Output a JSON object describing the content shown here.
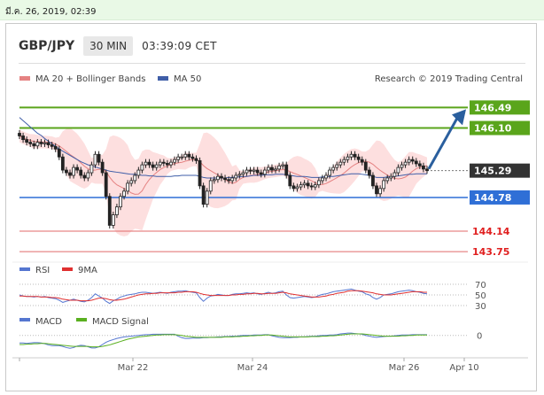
{
  "date_bar": {
    "text": "มี.ค. 26, 2019, 02:39"
  },
  "header": {
    "symbol": "GBP/JPY",
    "timeframe": "30 MIN",
    "time": "03:39:09 CET"
  },
  "colors": {
    "bollinger_fill": "#fdd9d9",
    "ma20": "#e58282",
    "ma50": "#3f5ea8",
    "resistance": "#5aa51b",
    "support_blue": "#2f6fd6",
    "support_red": "#e06a6a",
    "current_price_bg": "#333333",
    "arrow": "#2a5f9e",
    "rsi": "#5576d0",
    "rsi_ma": "#e03030",
    "macd": "#5576d0",
    "macd_signal": "#5ab020",
    "candle_up": "#ffffff",
    "candle_down": "#222222"
  },
  "chart_data": [
    {
      "type": "candlestick",
      "title": "",
      "legend": [
        {
          "name": "MA 20 + Bollinger Bands",
          "color": "#e58282"
        },
        {
          "name": "MA 50",
          "color": "#3f5ea8"
        }
      ],
      "credit": "Research © 2019 Trading Central",
      "ylim": [
        143.55,
        146.85
      ],
      "levels": [
        {
          "value": 146.49,
          "label": "146.49",
          "kind": "resistance"
        },
        {
          "value": 146.1,
          "label": "146.10",
          "kind": "resistance"
        },
        {
          "value": 145.29,
          "label": "145.29",
          "kind": "current"
        },
        {
          "value": 144.78,
          "label": "144.78",
          "kind": "support"
        },
        {
          "value": 144.14,
          "label": "144.14",
          "kind": "support_red"
        },
        {
          "value": 143.75,
          "label": "143.75",
          "kind": "support_red"
        }
      ],
      "x_ticks": [
        "Mar 22",
        "Mar 24",
        "Mar 26",
        "Apr 10"
      ],
      "closes": [
        145.95,
        145.88,
        145.83,
        145.8,
        145.76,
        145.83,
        145.8,
        145.82,
        145.78,
        145.75,
        145.7,
        145.55,
        145.3,
        145.25,
        145.2,
        145.35,
        145.3,
        145.2,
        145.15,
        145.25,
        145.4,
        145.6,
        145.45,
        145.25,
        144.8,
        144.25,
        144.45,
        144.6,
        144.8,
        144.9,
        145.05,
        145.1,
        145.2,
        145.3,
        145.4,
        145.45,
        145.4,
        145.35,
        145.4,
        145.45,
        145.43,
        145.4,
        145.45,
        145.5,
        145.55,
        145.55,
        145.6,
        145.55,
        145.52,
        145.48,
        145.0,
        144.65,
        144.9,
        145.1,
        145.12,
        145.18,
        145.15,
        145.12,
        145.1,
        145.15,
        145.2,
        145.22,
        145.25,
        145.3,
        145.28,
        145.3,
        145.25,
        145.22,
        145.3,
        145.35,
        145.3,
        145.32,
        145.38,
        145.4,
        145.2,
        145.0,
        144.95,
        144.98,
        145.02,
        145.05,
        145.0,
        144.98,
        145.02,
        145.1,
        145.15,
        145.2,
        145.3,
        145.35,
        145.4,
        145.45,
        145.5,
        145.55,
        145.6,
        145.55,
        145.5,
        145.45,
        145.3,
        145.2,
        145.0,
        144.85,
        144.95,
        145.1,
        145.15,
        145.18,
        145.25,
        145.35,
        145.4,
        145.45,
        145.5,
        145.47,
        145.42,
        145.38,
        145.32,
        145.29
      ],
      "ma50": [
        146.3,
        146.24,
        146.18,
        146.12,
        146.06,
        146.0,
        145.96,
        145.9,
        145.85,
        145.8,
        145.75,
        145.7,
        145.66,
        145.62,
        145.58,
        145.54,
        145.5,
        145.46,
        145.43,
        145.4,
        145.38,
        145.36,
        145.34,
        145.32,
        145.3,
        145.28,
        145.27,
        145.26,
        145.25,
        145.24,
        145.23,
        145.22,
        145.22,
        145.21,
        145.2,
        145.2,
        145.19,
        145.19,
        145.18,
        145.18,
        145.18,
        145.18,
        145.18,
        145.19,
        145.19,
        145.2,
        145.2,
        145.2,
        145.2,
        145.2,
        145.18,
        145.16,
        145.15,
        145.15,
        145.15,
        145.15,
        145.15,
        145.15,
        145.16,
        145.16,
        145.17,
        145.17,
        145.18,
        145.18,
        145.19,
        145.2,
        145.2,
        145.2,
        145.21,
        145.21,
        145.21,
        145.22,
        145.22,
        145.22,
        145.21,
        145.2,
        145.19,
        145.18,
        145.18,
        145.18,
        145.17,
        145.16,
        145.16,
        145.16,
        145.17,
        145.17,
        145.18,
        145.18,
        145.19,
        145.2,
        145.21,
        145.22,
        145.23,
        145.23,
        145.23,
        145.22,
        145.21,
        145.2,
        145.18,
        145.16,
        145.16,
        145.16,
        145.17,
        145.17,
        145.18,
        145.19,
        145.2,
        145.21,
        145.22,
        145.22,
        145.23,
        145.23,
        145.23,
        145.23
      ]
    },
    {
      "type": "line",
      "title": "",
      "legend": [
        {
          "name": "RSI",
          "color": "#5576d0"
        },
        {
          "name": "9MA",
          "color": "#e03030"
        }
      ],
      "ylim": [
        25,
        75
      ],
      "y_ticks": [
        "70",
        "50",
        "30"
      ],
      "rsi": [
        50,
        48,
        47,
        47,
        46,
        47,
        46,
        47,
        45,
        44,
        43,
        40,
        36,
        38,
        40,
        42,
        40,
        38,
        37,
        40,
        45,
        52,
        48,
        44,
        38,
        34,
        39,
        42,
        46,
        48,
        50,
        51,
        52,
        54,
        55,
        55,
        54,
        53,
        54,
        55,
        54,
        53,
        55,
        56,
        57,
        57,
        58,
        56,
        55,
        54,
        45,
        38,
        44,
        48,
        49,
        51,
        50,
        49,
        49,
        51,
        52,
        52,
        53,
        54,
        53,
        54,
        52,
        51,
        53,
        55,
        53,
        54,
        56,
        57,
        50,
        45,
        44,
        45,
        46,
        47,
        46,
        45,
        46,
        49,
        51,
        52,
        54,
        56,
        57,
        58,
        59,
        60,
        61,
        59,
        57,
        56,
        52,
        50,
        45,
        42,
        45,
        50,
        51,
        52,
        54,
        56,
        57,
        58,
        59,
        58,
        56,
        55,
        53,
        52
      ],
      "rsi_ma": [
        48,
        48,
        47,
        47,
        47,
        47,
        46,
        46,
        46,
        45,
        45,
        44,
        42,
        41,
        40,
        40,
        40,
        39,
        39,
        39,
        40,
        42,
        44,
        44,
        43,
        41,
        40,
        40,
        41,
        42,
        44,
        46,
        48,
        50,
        51,
        52,
        52,
        53,
        53,
        54,
        54,
        54,
        54,
        54,
        55,
        55,
        56,
        56,
        56,
        55,
        53,
        51,
        50,
        49,
        49,
        49,
        49,
        49,
        49,
        50,
        50,
        51,
        51,
        52,
        52,
        53,
        53,
        52,
        52,
        53,
        53,
        53,
        54,
        55,
        54,
        52,
        51,
        50,
        49,
        48,
        47,
        46,
        46,
        46,
        47,
        48,
        50,
        51,
        53,
        54,
        55,
        57,
        58,
        58,
        58,
        57,
        56,
        55,
        54,
        52,
        51,
        50,
        50,
        50,
        51,
        52,
        53,
        54,
        55,
        56,
        56,
        56,
        55,
        55
      ]
    },
    {
      "type": "line",
      "title": "",
      "legend": [
        {
          "name": "MACD",
          "color": "#5576d0"
        },
        {
          "name": "MACD Signal",
          "color": "#5ab020"
        }
      ],
      "ylim": [
        -0.45,
        0.25
      ],
      "y_ticks": [
        "0"
      ],
      "macd": [
        -0.2,
        -0.2,
        -0.21,
        -0.2,
        -0.19,
        -0.19,
        -0.2,
        -0.22,
        -0.25,
        -0.27,
        -0.27,
        -0.27,
        -0.29,
        -0.32,
        -0.34,
        -0.32,
        -0.28,
        -0.26,
        -0.27,
        -0.3,
        -0.33,
        -0.33,
        -0.3,
        -0.24,
        -0.18,
        -0.14,
        -0.11,
        -0.08,
        -0.06,
        -0.04,
        -0.03,
        -0.02,
        -0.01,
        0.0,
        0.01,
        0.02,
        0.02,
        0.03,
        0.03,
        0.03,
        0.03,
        0.03,
        0.03,
        0.03,
        -0.02,
        -0.06,
        -0.08,
        -0.08,
        -0.07,
        -0.07,
        -0.07,
        -0.06,
        -0.06,
        -0.05,
        -0.05,
        -0.04,
        -0.04,
        -0.03,
        -0.03,
        -0.02,
        -0.02,
        -0.01,
        0.0,
        0.0,
        0.0,
        0.01,
        0.01,
        0.01,
        0.02,
        0.02,
        -0.01,
        -0.03,
        -0.05,
        -0.06,
        -0.06,
        -0.06,
        -0.05,
        -0.05,
        -0.04,
        -0.04,
        -0.03,
        -0.02,
        -0.02,
        -0.01,
        0.0,
        0.0,
        0.01,
        0.01,
        0.02,
        0.04,
        0.05,
        0.06,
        0.06,
        0.05,
        0.04,
        0.03,
        0.0,
        -0.02,
        -0.04,
        -0.05,
        -0.04,
        -0.03,
        -0.02,
        -0.02,
        -0.01,
        0.0,
        0.01,
        0.01,
        0.01,
        0.02,
        0.02,
        0.02,
        0.02,
        0.02
      ],
      "signal": [
        -0.24,
        -0.24,
        -0.23,
        -0.23,
        -0.22,
        -0.22,
        -0.21,
        -0.21,
        -0.22,
        -0.23,
        -0.24,
        -0.25,
        -0.26,
        -0.27,
        -0.28,
        -0.29,
        -0.29,
        -0.29,
        -0.29,
        -0.29,
        -0.3,
        -0.3,
        -0.3,
        -0.29,
        -0.27,
        -0.25,
        -0.22,
        -0.19,
        -0.16,
        -0.13,
        -0.1,
        -0.08,
        -0.06,
        -0.04,
        -0.03,
        -0.02,
        -0.01,
        0.0,
        0.01,
        0.01,
        0.02,
        0.02,
        0.02,
        0.02,
        0.01,
        0.0,
        -0.02,
        -0.03,
        -0.04,
        -0.05,
        -0.05,
        -0.05,
        -0.05,
        -0.05,
        -0.05,
        -0.05,
        -0.05,
        -0.04,
        -0.04,
        -0.04,
        -0.03,
        -0.03,
        -0.02,
        -0.02,
        -0.01,
        -0.01,
        0.0,
        0.0,
        0.01,
        0.01,
        0.01,
        0.0,
        -0.01,
        -0.02,
        -0.03,
        -0.04,
        -0.04,
        -0.04,
        -0.04,
        -0.04,
        -0.04,
        -0.03,
        -0.03,
        -0.03,
        -0.02,
        -0.02,
        -0.01,
        -0.01,
        0.0,
        0.01,
        0.02,
        0.03,
        0.04,
        0.04,
        0.04,
        0.04,
        0.03,
        0.02,
        0.01,
        0.0,
        -0.01,
        -0.02,
        -0.02,
        -0.02,
        -0.02,
        -0.02,
        -0.01,
        -0.01,
        0.0,
        0.0,
        0.01,
        0.01,
        0.01,
        0.01
      ]
    }
  ]
}
